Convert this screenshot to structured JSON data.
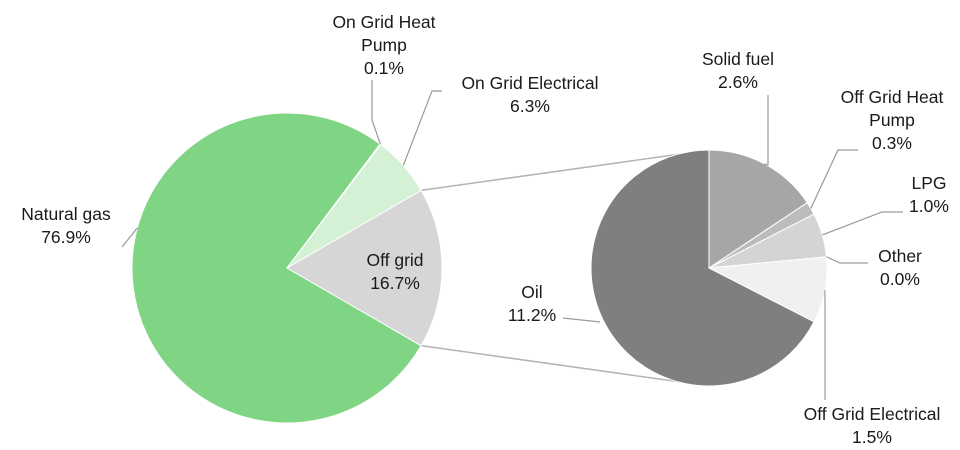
{
  "chart_data": {
    "type": "pie",
    "main_pie": {
      "slices": [
        {
          "label": "Natural gas",
          "value_label": "76.9%",
          "value": 76.9,
          "color": "#80d584"
        },
        {
          "label": "On Grid Heat Pump",
          "value_label": "0.1%",
          "value": 0.1,
          "color": "#a6e3aa"
        },
        {
          "label": "On Grid Electrical",
          "value_label": "6.3%",
          "value": 6.3,
          "color": "#d4f0d5"
        },
        {
          "label": "Off grid",
          "value_label": "16.7%",
          "value": 16.7,
          "color": "#d6d6d6"
        }
      ]
    },
    "breakdown_pie": {
      "of": "Off grid",
      "slices": [
        {
          "label": "Solid fuel",
          "value_label": "2.6%",
          "value": 2.6,
          "color": "#a6a6a6"
        },
        {
          "label": "Off Grid Heat Pump",
          "value_label": "0.3%",
          "value": 0.3,
          "color": "#bcbcbc"
        },
        {
          "label": "LPG",
          "value_label": "1.0%",
          "value": 1.0,
          "color": "#d4d4d4"
        },
        {
          "label": "Other",
          "value_label": "0.0%",
          "value": 0.0,
          "color": "#e4e4e4"
        },
        {
          "label": "Off Grid Electrical",
          "value_label": "1.5%",
          "value": 1.5,
          "color": "#f0f0f0"
        },
        {
          "label": "Oil",
          "value_label": "11.2%",
          "value": 11.2,
          "color": "#7f7f7f"
        }
      ]
    }
  }
}
